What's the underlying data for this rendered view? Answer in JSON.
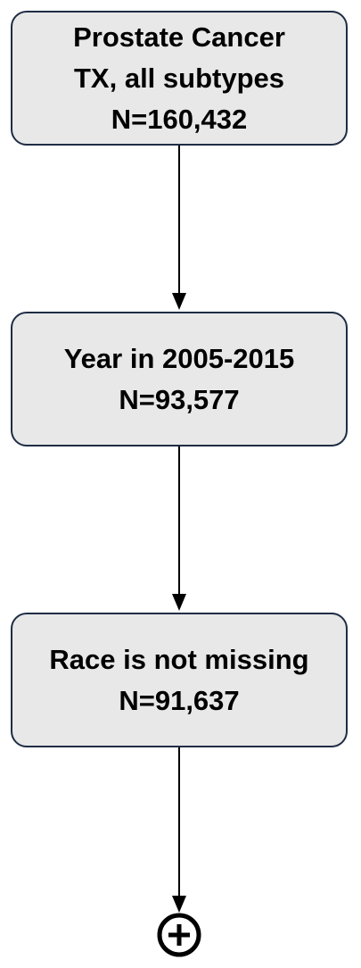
{
  "boxes": [
    {
      "line1": "Prostate Cancer",
      "line2": "TX, all subtypes",
      "count": "N=160,432"
    },
    {
      "line1": "Year in 2005-2015",
      "count": "N=93,577"
    },
    {
      "line1": "Race is not missing",
      "count": "N=91,637"
    }
  ],
  "terminal_symbol": "circled-plus-icon",
  "colors": {
    "box_fill": "#e8e8e8",
    "box_border": "#1f2d45",
    "text": "#000000",
    "line": "#000000"
  }
}
